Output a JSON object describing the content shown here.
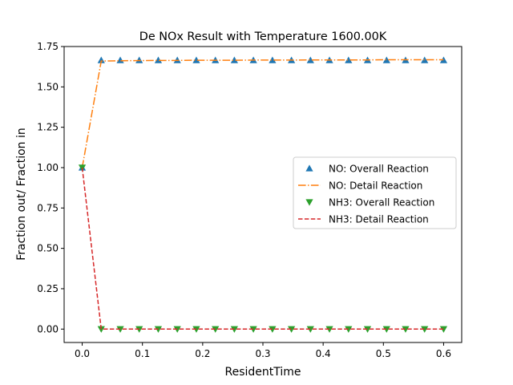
{
  "chart_data": {
    "type": "line",
    "title": "De NOx Result with Temperature 1600.00K",
    "xlabel": "ResidentTime",
    "ylabel": "Fraction out/ Fraction in",
    "xlim": [
      -0.03,
      0.63
    ],
    "ylim": [
      -0.083,
      1.75
    ],
    "xticks": [
      0.0,
      0.1,
      0.2,
      0.3,
      0.4,
      0.5,
      0.6
    ],
    "xtick_labels": [
      "0.0",
      "0.1",
      "0.2",
      "0.3",
      "0.4",
      "0.5",
      "0.6"
    ],
    "yticks": [
      0.0,
      0.25,
      0.5,
      0.75,
      1.0,
      1.25,
      1.5,
      1.75
    ],
    "ytick_labels": [
      "0.00",
      "0.25",
      "0.50",
      "0.75",
      "1.00",
      "1.25",
      "1.50",
      "1.75"
    ],
    "grid": false,
    "legend_position": "center-right",
    "x": [
      0.0,
      0.0316,
      0.0632,
      0.0947,
      0.1263,
      0.1579,
      0.1895,
      0.2211,
      0.2526,
      0.2842,
      0.3158,
      0.3474,
      0.3789,
      0.4105,
      0.4421,
      0.4737,
      0.5053,
      0.5368,
      0.5684,
      0.6
    ],
    "series": [
      {
        "name": "NO: Overall Reaction",
        "style": "marker-triangle-up",
        "color": "#1f77b4",
        "values": [
          1.0,
          1.665,
          1.665,
          1.665,
          1.665,
          1.665,
          1.665,
          1.665,
          1.665,
          1.665,
          1.665,
          1.665,
          1.665,
          1.665,
          1.665,
          1.665,
          1.665,
          1.665,
          1.665,
          1.665
        ]
      },
      {
        "name": "NO: Detail Reaction",
        "style": "line-dashdot",
        "color": "#ff7f0e",
        "values": [
          1.0,
          1.66,
          1.662,
          1.663,
          1.664,
          1.664,
          1.665,
          1.665,
          1.665,
          1.666,
          1.666,
          1.666,
          1.667,
          1.667,
          1.667,
          1.667,
          1.668,
          1.668,
          1.668,
          1.668
        ]
      },
      {
        "name": "NH3: Overall Reaction",
        "style": "marker-triangle-down",
        "color": "#2ca02c",
        "values": [
          1.0,
          0.0,
          0.0,
          0.0,
          0.0,
          0.0,
          0.0,
          0.0,
          0.0,
          0.0,
          0.0,
          0.0,
          0.0,
          0.0,
          0.0,
          0.0,
          0.0,
          0.0,
          0.0,
          0.0
        ]
      },
      {
        "name": "NH3: Detail Reaction",
        "style": "line-dashed",
        "color": "#d62728",
        "values": [
          1.0,
          0.0,
          0.0,
          0.0,
          0.0,
          0.0,
          0.0,
          0.0,
          0.0,
          0.0,
          0.0,
          0.0,
          0.0,
          0.0,
          0.0,
          0.0,
          0.0,
          0.0,
          0.0,
          0.0
        ]
      }
    ]
  }
}
